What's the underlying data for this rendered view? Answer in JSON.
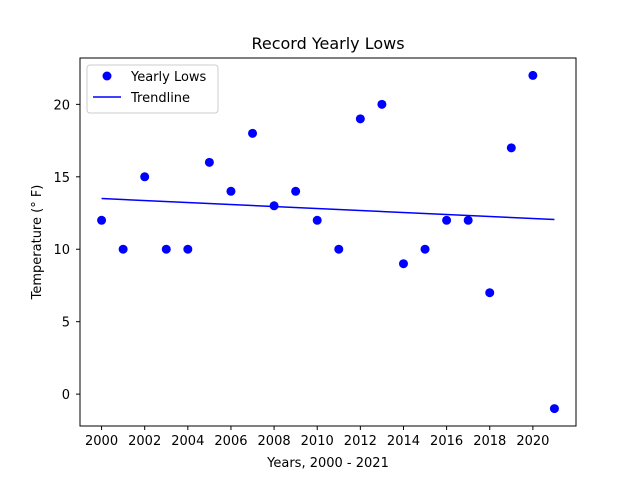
{
  "chart_data": {
    "type": "scatter",
    "title": "Record Yearly Lows",
    "xlabel": "Years, 2000 - 2021",
    "ylabel": "Temperature ($^\\circ$F)",
    "ylabel_display": "Temperature (° F)",
    "xlim": [
      1999.0,
      2022.0
    ],
    "ylim": [
      -2.2,
      23.2
    ],
    "xticks": [
      2000,
      2002,
      2004,
      2006,
      2008,
      2010,
      2012,
      2014,
      2016,
      2018,
      2020
    ],
    "yticks": [
      0,
      5,
      10,
      15,
      20
    ],
    "grid": false,
    "legend_position": "upper-left",
    "series": [
      {
        "name": "Yearly Lows",
        "kind": "scatter",
        "color": "#0000ff",
        "x": [
          2000,
          2001,
          2002,
          2003,
          2004,
          2005,
          2006,
          2007,
          2008,
          2009,
          2010,
          2011,
          2012,
          2013,
          2014,
          2015,
          2016,
          2017,
          2018,
          2019,
          2020,
          2021
        ],
        "y": [
          12,
          10,
          15,
          10,
          10,
          16,
          14,
          18,
          13,
          14,
          12,
          10,
          19,
          20,
          9,
          10,
          12,
          12,
          7,
          17,
          22,
          -1
        ]
      },
      {
        "name": "Trendline",
        "kind": "line",
        "color": "#0000ff",
        "x": [
          2000,
          2021
        ],
        "y": [
          13.5,
          12.05
        ]
      }
    ]
  }
}
